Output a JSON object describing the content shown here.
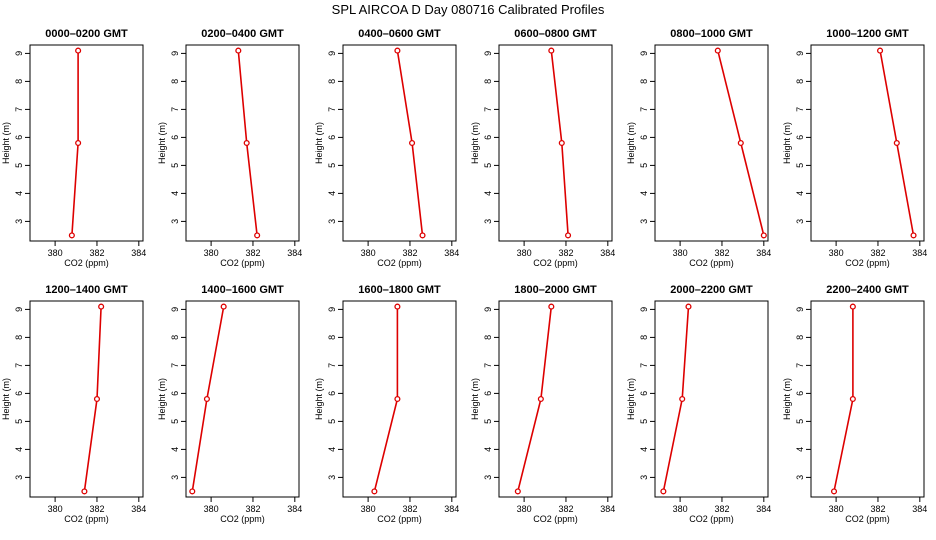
{
  "title": "SPL AIRCOA D  Day 080716  Calibrated Profiles",
  "colors": {
    "series": "#dd0000",
    "frame": "#000000"
  },
  "chart_data": [
    {
      "type": "line",
      "title": "0000–0200 GMT",
      "xlabel": "CO2 (ppm)",
      "ylabel": "Height (m)",
      "xlim": [
        378.8,
        384.2
      ],
      "ylim": [
        2.3,
        9.3
      ],
      "xticks": [
        380,
        382,
        384
      ],
      "yticks": [
        3,
        4,
        5,
        6,
        7,
        8,
        9
      ],
      "x": [
        380.8,
        381.1,
        381.1
      ],
      "y": [
        2.5,
        5.8,
        9.1
      ]
    },
    {
      "type": "line",
      "title": "0200–0400 GMT",
      "xlabel": "CO2 (ppm)",
      "ylabel": "Height (m)",
      "xlim": [
        378.8,
        384.2
      ],
      "ylim": [
        2.3,
        9.3
      ],
      "xticks": [
        380,
        382,
        384
      ],
      "yticks": [
        3,
        4,
        5,
        6,
        7,
        8,
        9
      ],
      "x": [
        382.2,
        381.7,
        381.3
      ],
      "y": [
        2.5,
        5.8,
        9.1
      ]
    },
    {
      "type": "line",
      "title": "0400–0600 GMT",
      "xlabel": "CO2 (ppm)",
      "ylabel": "Height (m)",
      "xlim": [
        378.8,
        384.2
      ],
      "ylim": [
        2.3,
        9.3
      ],
      "xticks": [
        380,
        382,
        384
      ],
      "yticks": [
        3,
        4,
        5,
        6,
        7,
        8,
        9
      ],
      "x": [
        382.6,
        382.1,
        381.4
      ],
      "y": [
        2.5,
        5.8,
        9.1
      ]
    },
    {
      "type": "line",
      "title": "0600–0800 GMT",
      "xlabel": "CO2 (ppm)",
      "ylabel": "Height (m)",
      "xlim": [
        378.8,
        384.2
      ],
      "ylim": [
        2.3,
        9.3
      ],
      "xticks": [
        380,
        382,
        384
      ],
      "yticks": [
        3,
        4,
        5,
        6,
        7,
        8,
        9
      ],
      "x": [
        382.1,
        381.8,
        381.3
      ],
      "y": [
        2.5,
        5.8,
        9.1
      ]
    },
    {
      "type": "line",
      "title": "0800–1000 GMT",
      "xlabel": "CO2 (ppm)",
      "ylabel": "Height (m)",
      "xlim": [
        378.8,
        384.2
      ],
      "ylim": [
        2.3,
        9.3
      ],
      "xticks": [
        380,
        382,
        384
      ],
      "yticks": [
        3,
        4,
        5,
        6,
        7,
        8,
        9
      ],
      "x": [
        384.0,
        382.9,
        381.8
      ],
      "y": [
        2.5,
        5.8,
        9.1
      ]
    },
    {
      "type": "line",
      "title": "1000–1200 GMT",
      "xlabel": "CO2 (ppm)",
      "ylabel": "Height (m)",
      "xlim": [
        378.8,
        384.2
      ],
      "ylim": [
        2.3,
        9.3
      ],
      "xticks": [
        380,
        382,
        384
      ],
      "yticks": [
        3,
        4,
        5,
        6,
        7,
        8,
        9
      ],
      "x": [
        383.7,
        382.9,
        382.1
      ],
      "y": [
        2.5,
        5.8,
        9.1
      ]
    },
    {
      "type": "line",
      "title": "1200–1400 GMT",
      "xlabel": "CO2 (ppm)",
      "ylabel": "Height (m)",
      "xlim": [
        378.8,
        384.2
      ],
      "ylim": [
        2.3,
        9.3
      ],
      "xticks": [
        380,
        382,
        384
      ],
      "yticks": [
        3,
        4,
        5,
        6,
        7,
        8,
        9
      ],
      "x": [
        381.4,
        382.0,
        382.2
      ],
      "y": [
        2.5,
        5.8,
        9.1
      ]
    },
    {
      "type": "line",
      "title": "1400–1600 GMT",
      "xlabel": "CO2 (ppm)",
      "ylabel": "Height (m)",
      "xlim": [
        378.8,
        384.2
      ],
      "ylim": [
        2.3,
        9.3
      ],
      "xticks": [
        380,
        382,
        384
      ],
      "yticks": [
        3,
        4,
        5,
        6,
        7,
        8,
        9
      ],
      "x": [
        379.1,
        379.8,
        380.6
      ],
      "y": [
        2.5,
        5.8,
        9.1
      ]
    },
    {
      "type": "line",
      "title": "1600–1800 GMT",
      "xlabel": "CO2 (ppm)",
      "ylabel": "Height (m)",
      "xlim": [
        378.8,
        384.2
      ],
      "ylim": [
        2.3,
        9.3
      ],
      "xticks": [
        380,
        382,
        384
      ],
      "yticks": [
        3,
        4,
        5,
        6,
        7,
        8,
        9
      ],
      "x": [
        380.3,
        381.4,
        381.4
      ],
      "y": [
        2.5,
        5.8,
        9.1
      ]
    },
    {
      "type": "line",
      "title": "1800–2000 GMT",
      "xlabel": "CO2 (ppm)",
      "ylabel": "Height (m)",
      "xlim": [
        378.8,
        384.2
      ],
      "ylim": [
        2.3,
        9.3
      ],
      "xticks": [
        380,
        382,
        384
      ],
      "yticks": [
        3,
        4,
        5,
        6,
        7,
        8,
        9
      ],
      "x": [
        379.7,
        380.8,
        381.3
      ],
      "y": [
        2.5,
        5.8,
        9.1
      ]
    },
    {
      "type": "line",
      "title": "2000–2200 GMT",
      "xlabel": "CO2 (ppm)",
      "ylabel": "Height (m)",
      "xlim": [
        378.8,
        384.2
      ],
      "ylim": [
        2.3,
        9.3
      ],
      "xticks": [
        380,
        382,
        384
      ],
      "yticks": [
        3,
        4,
        5,
        6,
        7,
        8,
        9
      ],
      "x": [
        379.2,
        380.1,
        380.4
      ],
      "y": [
        2.5,
        5.8,
        9.1
      ]
    },
    {
      "type": "line",
      "title": "2200–2400 GMT",
      "xlabel": "CO2 (ppm)",
      "ylabel": "Height (m)",
      "xlim": [
        378.8,
        384.2
      ],
      "ylim": [
        2.3,
        9.3
      ],
      "xticks": [
        380,
        382,
        384
      ],
      "yticks": [
        3,
        4,
        5,
        6,
        7,
        8,
        9
      ],
      "x": [
        379.9,
        380.8,
        380.8
      ],
      "y": [
        2.5,
        5.8,
        9.1
      ]
    }
  ]
}
